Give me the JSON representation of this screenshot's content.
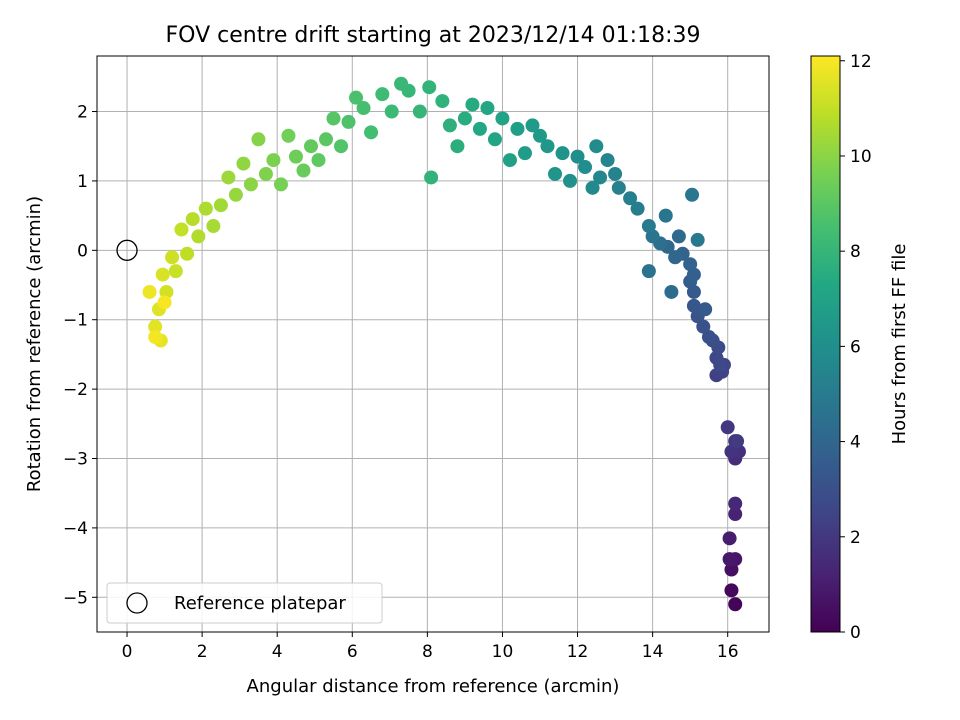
{
  "chart_data": {
    "type": "scatter",
    "title": "FOV centre drift starting at 2023/12/14 01:18:39",
    "xlabel": "Angular distance from reference (arcmin)",
    "ylabel": "Rotation from reference (arcmin)",
    "xlim": [
      -0.8,
      17.1
    ],
    "ylim": [
      -5.5,
      2.8
    ],
    "xticks": [
      "0",
      "2",
      "4",
      "6",
      "8",
      "10",
      "12",
      "14",
      "16"
    ],
    "yticks": [
      "2",
      "1",
      "0",
      "−1",
      "−2",
      "−3",
      "−4",
      "−5"
    ],
    "grid": true,
    "colormap": "viridis",
    "colorbar": {
      "label": "Hours from first FF file",
      "range": [
        0,
        12.1
      ],
      "ticks": [
        "0",
        "2",
        "4",
        "6",
        "8",
        "10",
        "12"
      ]
    },
    "legend": {
      "position": "lower-left",
      "entries": [
        "Reference platepar"
      ]
    },
    "reference_point": {
      "x": 0,
      "y": 0
    },
    "series": [
      {
        "points": [
          [
            16.2,
            -5.1,
            0.1
          ],
          [
            16.1,
            -4.9,
            0.3
          ],
          [
            16.1,
            -4.6,
            0.5
          ],
          [
            16.2,
            -4.45,
            0.7
          ],
          [
            16.05,
            -4.45,
            0.8
          ],
          [
            16.05,
            -4.15,
            1.0
          ],
          [
            16.2,
            -3.8,
            1.2
          ],
          [
            16.2,
            -3.65,
            1.4
          ],
          [
            16.2,
            -3.0,
            1.6
          ],
          [
            16.3,
            -2.9,
            1.7
          ],
          [
            16.1,
            -2.9,
            1.8
          ],
          [
            16.2,
            -2.75,
            1.9
          ],
          [
            16.0,
            -2.55,
            2.0
          ],
          [
            16.25,
            -2.75,
            2.1
          ],
          [
            15.7,
            -1.8,
            2.3
          ],
          [
            15.85,
            -1.75,
            2.4
          ],
          [
            15.9,
            -1.65,
            2.5
          ],
          [
            15.7,
            -1.55,
            2.6
          ],
          [
            15.8,
            -1.65,
            2.7
          ],
          [
            15.75,
            -1.4,
            2.8
          ],
          [
            15.6,
            -1.3,
            2.9
          ],
          [
            15.5,
            -1.25,
            3.0
          ],
          [
            15.35,
            -1.1,
            3.1
          ],
          [
            15.2,
            -0.95,
            3.2
          ],
          [
            15.1,
            -0.8,
            3.3
          ],
          [
            15.4,
            -0.85,
            3.4
          ],
          [
            15.1,
            -0.6,
            3.5
          ],
          [
            15.0,
            -0.45,
            3.6
          ],
          [
            15.1,
            -0.35,
            3.7
          ],
          [
            15.0,
            -0.2,
            3.8
          ],
          [
            14.8,
            -0.05,
            3.9
          ],
          [
            14.6,
            -0.1,
            4.0
          ],
          [
            14.4,
            0.05,
            4.1
          ],
          [
            14.7,
            0.2,
            4.2
          ],
          [
            14.5,
            -0.6,
            4.3
          ],
          [
            14.2,
            0.1,
            4.4
          ],
          [
            13.9,
            -0.3,
            4.5
          ],
          [
            14.0,
            0.2,
            4.6
          ],
          [
            14.35,
            0.5,
            4.7
          ],
          [
            15.05,
            0.8,
            4.8
          ],
          [
            15.2,
            0.15,
            4.9
          ],
          [
            13.9,
            0.35,
            5.0
          ],
          [
            13.6,
            0.6,
            5.1
          ],
          [
            13.4,
            0.75,
            5.2
          ],
          [
            13.1,
            0.9,
            5.3
          ],
          [
            13.0,
            1.1,
            5.4
          ],
          [
            12.8,
            1.3,
            5.5
          ],
          [
            12.6,
            1.05,
            5.6
          ],
          [
            12.4,
            0.9,
            5.7
          ],
          [
            12.5,
            1.5,
            5.8
          ],
          [
            12.2,
            1.2,
            5.9
          ],
          [
            12.0,
            1.35,
            6.0
          ],
          [
            11.8,
            1.0,
            6.1
          ],
          [
            11.6,
            1.4,
            6.2
          ],
          [
            11.4,
            1.1,
            6.3
          ],
          [
            11.2,
            1.5,
            6.4
          ],
          [
            11.0,
            1.65,
            6.5
          ],
          [
            10.8,
            1.8,
            6.6
          ],
          [
            10.6,
            1.4,
            6.7
          ],
          [
            10.4,
            1.75,
            6.8
          ],
          [
            10.2,
            1.3,
            6.9
          ],
          [
            10.0,
            1.9,
            7.0
          ],
          [
            9.8,
            1.6,
            7.1
          ],
          [
            9.6,
            2.05,
            7.2
          ],
          [
            9.4,
            1.75,
            7.3
          ],
          [
            9.2,
            2.1,
            7.4
          ],
          [
            9.0,
            1.9,
            7.5
          ],
          [
            8.8,
            1.5,
            7.6
          ],
          [
            8.6,
            1.8,
            7.7
          ],
          [
            8.4,
            2.15,
            7.8
          ],
          [
            8.1,
            1.05,
            7.85
          ],
          [
            8.05,
            2.35,
            7.9
          ],
          [
            7.8,
            2.0,
            8.0
          ],
          [
            7.5,
            2.3,
            8.05
          ],
          [
            7.3,
            2.4,
            8.1
          ],
          [
            7.05,
            2.0,
            8.2
          ],
          [
            6.8,
            2.25,
            8.3
          ],
          [
            6.5,
            1.7,
            8.4
          ],
          [
            6.3,
            2.05,
            8.5
          ],
          [
            6.1,
            2.2,
            8.6
          ],
          [
            5.9,
            1.85,
            8.7
          ],
          [
            5.7,
            1.5,
            8.8
          ],
          [
            5.5,
            1.9,
            8.9
          ],
          [
            5.3,
            1.6,
            9.0
          ],
          [
            5.1,
            1.3,
            9.1
          ],
          [
            4.9,
            1.5,
            9.2
          ],
          [
            4.7,
            1.15,
            9.3
          ],
          [
            4.5,
            1.35,
            9.4
          ],
          [
            4.3,
            1.65,
            9.5
          ],
          [
            4.1,
            0.95,
            9.6
          ],
          [
            3.9,
            1.3,
            9.7
          ],
          [
            3.7,
            1.1,
            9.8
          ],
          [
            3.5,
            1.6,
            9.9
          ],
          [
            3.3,
            0.95,
            10.0
          ],
          [
            3.1,
            1.25,
            10.1
          ],
          [
            2.9,
            0.8,
            10.2
          ],
          [
            2.7,
            1.05,
            10.3
          ],
          [
            2.5,
            0.65,
            10.4
          ],
          [
            2.3,
            0.35,
            10.5
          ],
          [
            2.1,
            0.6,
            10.6
          ],
          [
            1.9,
            0.2,
            10.7
          ],
          [
            1.75,
            0.45,
            10.8
          ],
          [
            1.6,
            -0.05,
            10.9
          ],
          [
            1.45,
            0.3,
            11.0
          ],
          [
            1.3,
            -0.3,
            11.1
          ],
          [
            1.2,
            -0.1,
            11.2
          ],
          [
            1.05,
            -0.6,
            11.3
          ],
          [
            0.95,
            -0.35,
            11.4
          ],
          [
            0.85,
            -0.85,
            11.5
          ],
          [
            0.75,
            -1.1,
            11.6
          ],
          [
            0.9,
            -1.3,
            11.7
          ],
          [
            0.6,
            -0.6,
            11.8
          ],
          [
            0.75,
            -1.25,
            11.9
          ],
          [
            1.0,
            -0.75,
            12.0
          ]
        ]
      }
    ]
  }
}
